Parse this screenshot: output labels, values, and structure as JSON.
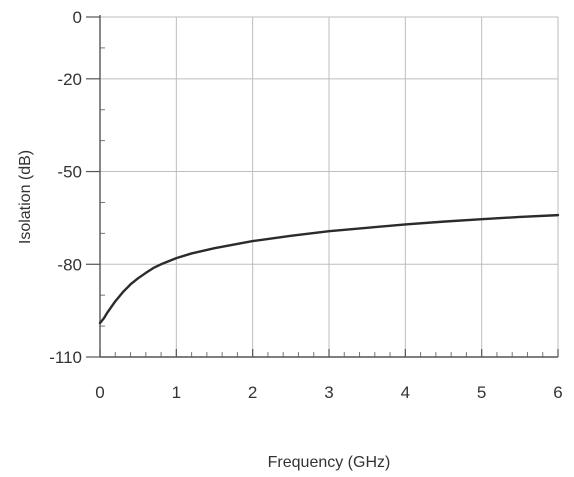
{
  "chart_data": {
    "type": "line",
    "title": "",
    "xlabel": "Frequency (GHz)",
    "ylabel": "Isolation (dB)",
    "xlim": [
      0,
      6
    ],
    "ylim": [
      -110,
      0
    ],
    "grid": true,
    "x_ticks": [
      0,
      1,
      2,
      3,
      4,
      5,
      6
    ],
    "x_tick_labels": [
      "0",
      "1",
      "2",
      "3",
      "4",
      "5",
      "6"
    ],
    "y_ticks": [
      0,
      -20,
      -50,
      -80,
      -110
    ],
    "y_tick_labels": [
      "0",
      "-20",
      "-50",
      "-80",
      "-110"
    ],
    "series": [
      {
        "color": "#2b2b2b",
        "x": [
          0,
          0.05,
          0.1,
          0.2,
          0.3,
          0.4,
          0.5,
          0.6,
          0.7,
          0.8,
          1.0,
          1.2,
          1.5,
          2.0,
          2.5,
          3.0,
          3.5,
          4.0,
          4.5,
          5.0,
          5.5,
          6.0
        ],
        "y": [
          -99,
          -97.5,
          -95.5,
          -92,
          -89,
          -86.5,
          -84.5,
          -82.8,
          -81.2,
          -80,
          -78,
          -76.5,
          -74.8,
          -72.5,
          -70.8,
          -69.3,
          -68.2,
          -67.1,
          -66.2,
          -65.4,
          -64.7,
          -64.1
        ]
      }
    ]
  }
}
